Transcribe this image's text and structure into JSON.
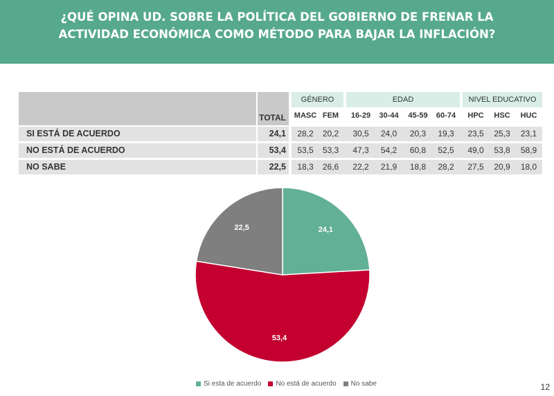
{
  "title_line1": "¿QUÉ OPINA UD. SOBRE LA POLÍTICA DEL GOBIERNO DE FRENAR LA",
  "title_line2": "ACTIVIDAD ECONÓMICA COMO MÉTODO PARA BAJAR LA INFLACIÓN?",
  "table": {
    "total_header": "TOTAL",
    "groups": [
      "GÉNERO",
      "EDAD",
      "NIVEL EDUCATIVO"
    ],
    "columns": [
      "MASC",
      "FEM",
      "16-29",
      "30-44",
      "45-59",
      "60-74",
      "HPC",
      "HSC",
      "HUC"
    ],
    "rows": [
      {
        "label": "SI ESTÁ DE ACUERDO",
        "total": "24,1",
        "values": [
          "28,2",
          "20,2",
          "30,5",
          "24,0",
          "20,3",
          "19,3",
          "23,5",
          "25,3",
          "23,1"
        ]
      },
      {
        "label": "NO ESTÁ DE ACUERDO",
        "total": "53,4",
        "values": [
          "53,5",
          "53,3",
          "47,3",
          "54,2",
          "60,8",
          "52,5",
          "49,0",
          "53,8",
          "58,9"
        ]
      },
      {
        "label": "NO SABE",
        "total": "22,5",
        "values": [
          "18,3",
          "26,6",
          "22,2",
          "21,9",
          "18,8",
          "28,2",
          "27,5",
          "20,9",
          "18,0"
        ]
      }
    ]
  },
  "chart_data": {
    "type": "pie",
    "title": "",
    "categories": [
      "Si esta de acuerdo",
      "No está de acuerdo",
      "No sabe"
    ],
    "values": [
      24.1,
      53.4,
      22.5
    ],
    "labels": [
      "24,1",
      "53,4",
      "22,5"
    ],
    "colors": [
      "#62b095",
      "#c3002f",
      "#7f7f7f"
    ],
    "legend_position": "bottom"
  },
  "page_number": "12"
}
